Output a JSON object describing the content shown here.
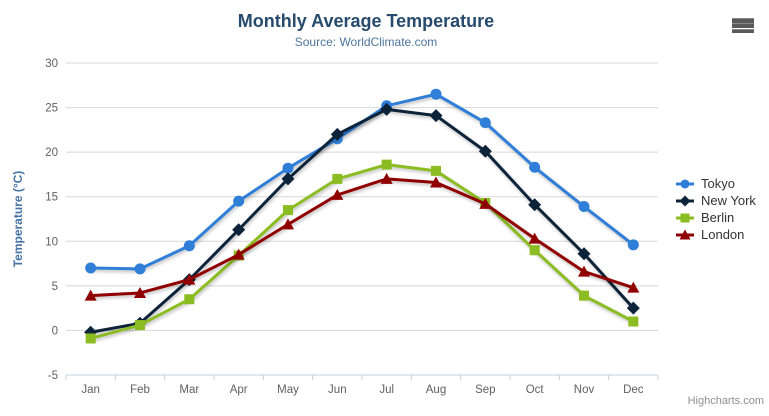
{
  "chart_data": {
    "type": "line",
    "title": "Monthly Average Temperature",
    "subtitle": "Source: WorldClimate.com",
    "xlabel": "",
    "ylabel": "Temperature (°C)",
    "categories": [
      "Jan",
      "Feb",
      "Mar",
      "Apr",
      "May",
      "Jun",
      "Jul",
      "Aug",
      "Sep",
      "Oct",
      "Nov",
      "Dec"
    ],
    "ylim": [
      -5,
      30
    ],
    "y_ticks": [
      30,
      25,
      20,
      15,
      10,
      5,
      0,
      -5
    ],
    "grid": true,
    "legend_position": "right",
    "series": [
      {
        "name": "Tokyo",
        "color": "#2f7ed8",
        "marker": "circle",
        "values": [
          7.0,
          6.9,
          9.5,
          14.5,
          18.2,
          21.5,
          25.2,
          26.5,
          23.3,
          18.3,
          13.9,
          9.6
        ]
      },
      {
        "name": "New York",
        "color": "#0d233a",
        "marker": "diamond",
        "values": [
          -0.2,
          0.8,
          5.7,
          11.3,
          17.0,
          22.0,
          24.8,
          24.1,
          20.1,
          14.1,
          8.6,
          2.5
        ]
      },
      {
        "name": "Berlin",
        "color": "#8bbc21",
        "marker": "square",
        "values": [
          -0.9,
          0.6,
          3.5,
          8.4,
          13.5,
          17.0,
          18.6,
          17.9,
          14.3,
          9.0,
          3.9,
          1.0
        ]
      },
      {
        "name": "London",
        "color": "#910000",
        "marker": "triangle",
        "values": [
          3.9,
          4.2,
          5.7,
          8.5,
          11.9,
          15.2,
          17.0,
          16.6,
          14.2,
          10.3,
          6.6,
          4.8
        ]
      }
    ]
  },
  "credits": {
    "label": "Highcharts.com"
  },
  "colors": {
    "title": "#274b6d",
    "subtitle": "#4d759e",
    "axis_label": "#606060",
    "axis_line": "#c0d0e0",
    "gridline": "#d8d8d8",
    "legend_text": "#333333",
    "yaxis_title": "#4572a7"
  }
}
